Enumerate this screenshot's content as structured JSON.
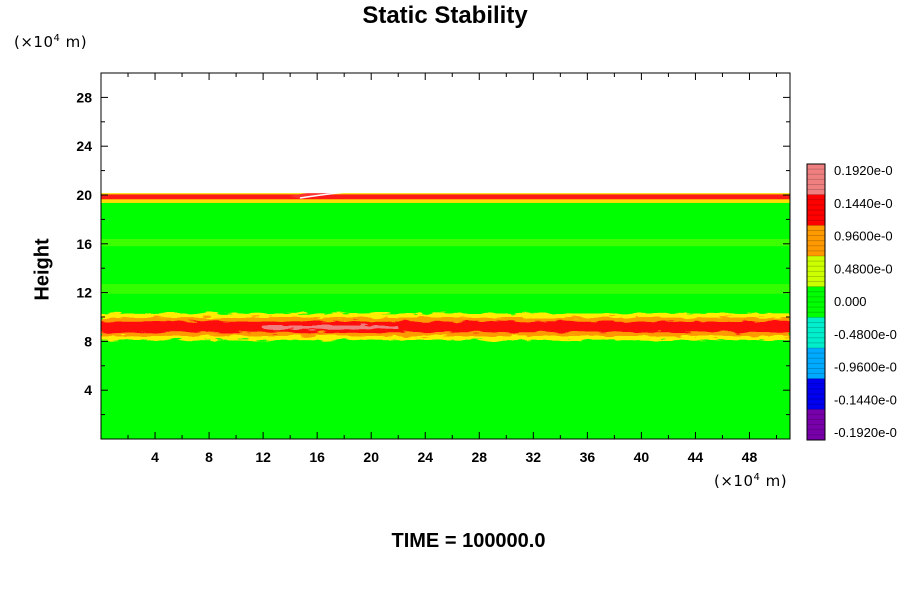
{
  "chart_data": {
    "type": "heatmap",
    "title": "Static Stability",
    "ylabel": "Height",
    "xlabel": "",
    "x_unit": {
      "prefix": "(×10",
      "exp": "4",
      "suffix": " m)"
    },
    "y_unit": {
      "prefix": "(×10",
      "exp": "4",
      "suffix": " m)"
    },
    "xlim": [
      0,
      51
    ],
    "ylim": [
      0,
      30
    ],
    "x_ticks": [
      4,
      8,
      12,
      16,
      20,
      24,
      28,
      32,
      36,
      40,
      44,
      48
    ],
    "y_ticks": [
      4,
      8,
      12,
      16,
      20,
      24,
      28
    ],
    "fields": {
      "background_level": "0.000",
      "top_of_data": 19.8,
      "upper_band": {
        "height": 19.9,
        "level": "0.1440e-0"
      },
      "mid_band": {
        "height": 9.2,
        "level": "0.1920e-0",
        "x_extent": [
          0,
          51
        ]
      },
      "weak_layers": [
        12.3,
        16.1
      ]
    },
    "colorbar": {
      "labels": [
        "0.1920e-0",
        "0.1440e-0",
        "0.9600e-0",
        "0.4800e-0",
        "0.000",
        "-0.4800e-0",
        "-0.9600e-0",
        "-0.1440e-0",
        "-0.1920e-0"
      ],
      "colors": [
        "#f08080",
        "#ff0000",
        "#ff9900",
        "#ccff00",
        "#00ff00",
        "#00eecc",
        "#00aaff",
        "#0000ee",
        "#7700aa"
      ]
    },
    "footer": "TIME = 100000.0"
  }
}
